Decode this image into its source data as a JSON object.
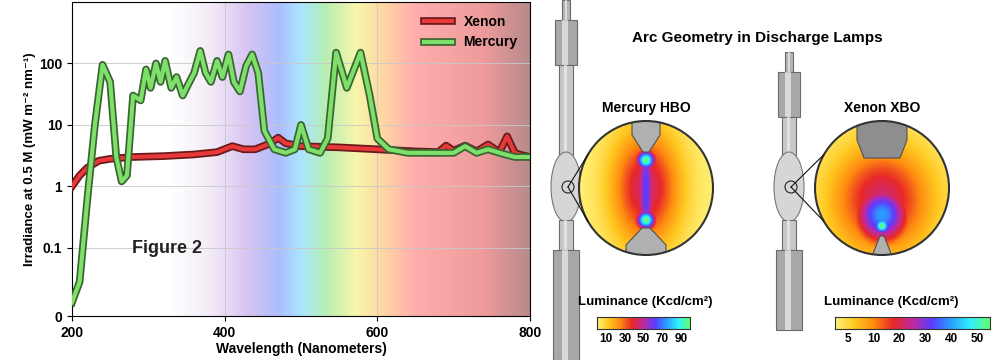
{
  "chart_data": {
    "type": "line",
    "annotation": "Figure 2",
    "x_label": "Wavelength (Nanometers)",
    "y_label": "Irradiance at 0.5 M (mW m⁻² nm⁻¹)",
    "log": "y",
    "grid": true,
    "legend": "upper right",
    "xlim": [
      200,
      800
    ],
    "xticks": [
      200,
      400,
      600,
      800
    ],
    "ylim": [
      0,
      1000
    ],
    "yticks": [
      0,
      0.1,
      1,
      10,
      100
    ],
    "series": [
      {
        "name": "Xenon",
        "color": "#e8383a",
        "x": [
          200,
          210,
          220,
          235,
          250,
          280,
          320,
          360,
          390,
          410,
          425,
          440,
          460,
          470,
          480,
          500,
          550,
          600,
          650,
          680,
          690,
          700,
          715,
          730,
          745,
          760,
          770,
          780,
          790,
          800
        ],
        "values": [
          1,
          1.5,
          2,
          2.6,
          2.8,
          3,
          3.1,
          3.3,
          3.6,
          4.5,
          4,
          4,
          5,
          6.2,
          5,
          4.5,
          4.3,
          4,
          3.7,
          3.6,
          4.6,
          3.8,
          4.6,
          3.7,
          4.8,
          3.6,
          6.5,
          3.5,
          3.2,
          3
        ]
      },
      {
        "name": "Mercury",
        "color": "#7ee06a",
        "x": [
          200,
          210,
          220,
          230,
          240,
          250,
          258,
          265,
          272,
          280,
          290,
          297,
          303,
          310,
          316,
          322,
          330,
          337,
          345,
          352,
          360,
          368,
          375,
          382,
          390,
          397,
          405,
          412,
          420,
          428,
          436,
          444,
          452,
          465,
          480,
          492,
          500,
          510,
          525,
          535,
          546,
          560,
          578,
          590,
          600,
          615,
          640,
          670,
          700,
          715,
          730,
          745,
          760,
          780,
          800
        ],
        "values": [
          0.02,
          0.05,
          0.6,
          10,
          95,
          50,
          3,
          1.2,
          1.5,
          30,
          25,
          80,
          40,
          100,
          50,
          110,
          40,
          60,
          30,
          45,
          70,
          160,
          70,
          50,
          110,
          60,
          140,
          50,
          35,
          90,
          140,
          70,
          8,
          4,
          3.5,
          4,
          10,
          4,
          3.5,
          6,
          150,
          40,
          150,
          30,
          6,
          4,
          3.5,
          3.5,
          3.5,
          4.5,
          3.5,
          4,
          3.5,
          3,
          3
        ]
      }
    ]
  },
  "diagram": {
    "title": "Arc Geometry in Discharge Lamps",
    "lamps": [
      {
        "label": "Mercury HBO",
        "colorbar_label": "Luminance (Kcd/cm²)",
        "colorbar_ticks": [
          10,
          30,
          50,
          70,
          90
        ]
      },
      {
        "label": "Xenon XBO",
        "colorbar_label": "Luminance (Kcd/cm²)",
        "colorbar_ticks": [
          5,
          10,
          20,
          30,
          40,
          50
        ]
      }
    ]
  }
}
